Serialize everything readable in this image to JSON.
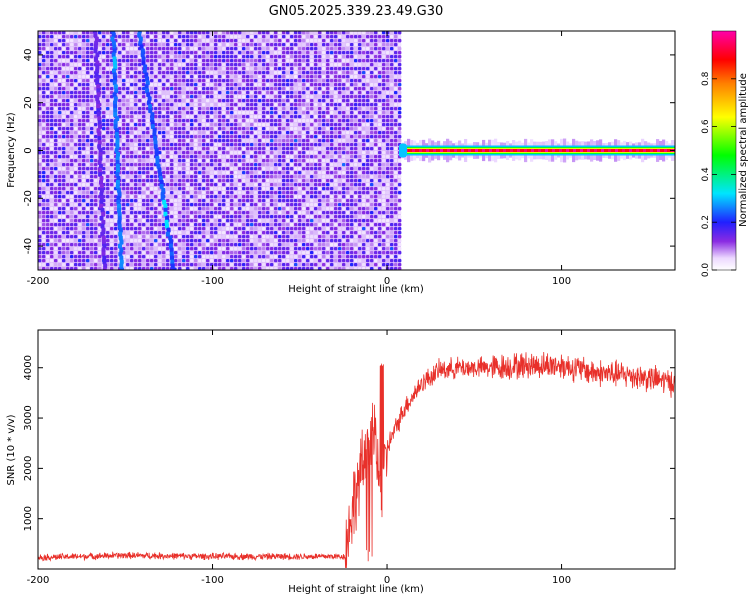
{
  "title": "GN05.2025.339.23.49.G30",
  "chart_data": [
    {
      "type": "heatmap",
      "xlabel": "Height of straight line (km)",
      "ylabel": "Frequency (Hz)",
      "xlim": [
        -200,
        165
      ],
      "ylim": [
        -50,
        50
      ],
      "xticks": [
        -200,
        -100,
        0,
        100
      ],
      "yticks": [
        -40,
        -20,
        0,
        20,
        40
      ],
      "colorbar": {
        "label": "Normalized spectral amplitude",
        "range": [
          0.0,
          1.0
        ],
        "ticks": [
          "0.0",
          "0.2",
          "0.4",
          "0.6",
          "0.8"
        ],
        "colormap": "rainbow (white-violet-blue-cyan-green-yellow-red-magenta)"
      },
      "features": [
        {
          "name": "noise",
          "x_range": [
            -200,
            8
          ],
          "amplitude": 0.15
        },
        {
          "name": "streak",
          "from": [
            -157,
            50
          ],
          "to": [
            -152,
            -50
          ],
          "amplitude": 0.22
        },
        {
          "name": "streak",
          "from": [
            -142,
            50
          ],
          "to": [
            -122,
            -50
          ],
          "amplitude": 0.2
        },
        {
          "name": "streak",
          "from": [
            -167,
            50
          ],
          "to": [
            -162,
            -50
          ],
          "amplitude": 0.12
        },
        {
          "name": "carrier",
          "x_range": [
            8,
            165
          ],
          "frequency_hz": 0,
          "amplitude": 0.9
        }
      ]
    },
    {
      "type": "line",
      "xlabel": "Height of straight line (km)",
      "ylabel": "SNR (10 * v/v)",
      "xlim": [
        -200,
        165
      ],
      "ylim": [
        0,
        4750
      ],
      "xticks": [
        -200,
        -100,
        0,
        100
      ],
      "yticks": [
        1000,
        2000,
        3000,
        4000
      ],
      "color": "#e8302a",
      "profile": {
        "x": [
          -200,
          -150,
          -100,
          -50,
          -24,
          -22,
          -18,
          -10,
          -6,
          -3,
          0,
          10,
          20,
          30,
          40,
          60,
          80,
          100,
          120,
          140,
          165
        ],
        "y": [
          230,
          270,
          250,
          250,
          250,
          800,
          1500,
          2500,
          2700,
          1300,
          2400,
          3200,
          3700,
          3950,
          4000,
          4000,
          4050,
          4050,
          3900,
          3850,
          3700
        ]
      },
      "noise_amplitude": [
        {
          "x_range": [
            -200,
            -24
          ],
          "value": 80
        },
        {
          "x_range": [
            -24,
            0
          ],
          "value": 900
        },
        {
          "x_range": [
            0,
            60
          ],
          "value": 250
        },
        {
          "x_range": [
            60,
            165
          ],
          "value": 320
        }
      ]
    }
  ]
}
